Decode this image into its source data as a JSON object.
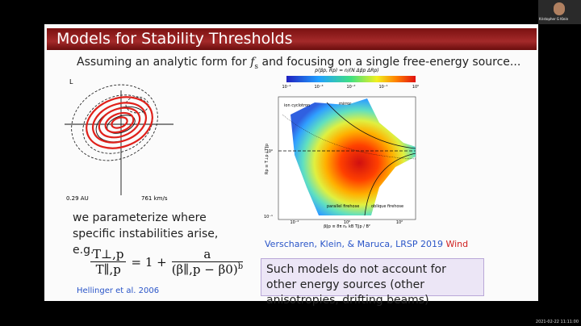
{
  "video_tile": {
    "name": "Kristopher G Klein"
  },
  "slide": {
    "title": "Models for Stability Thresholds",
    "intro_before": "Assuming an analytic form for",
    "intro_math": "f",
    "intro_math_sub": "s",
    "intro_after": "and focusing on a single free-energy source...",
    "left_figure": {
      "corner": "L",
      "distance": "0.29 AU",
      "speed": "761 km/s"
    },
    "parameterize": "we parameterize where specific instabilities arise, e.g.",
    "equation": {
      "lhs_num": "T⊥,p",
      "lhs_den": "T∥,p",
      "middle": "= 1 +",
      "rhs_num": "a",
      "rhs_den": "(β∥,p − β0)",
      "rhs_exp": "b"
    },
    "hellinger": "Hellinger et al. 2006",
    "right_figure": {
      "colorbar_label": "p(βp, Rp) = n/(N Δβp ΔRp)",
      "colorbar_ticks": [
        "10⁻⁴",
        "10⁻³",
        "10⁻²",
        "10⁻¹",
        "10⁰"
      ],
      "y_label": "Rp ≡ T⊥p / T∥p",
      "x_label": "β∥p ≡ 8π nₚ kB T∥p / B²",
      "y_ticks": [
        "10⁰",
        "10⁻¹"
      ],
      "x_ticks": [
        "10⁻²",
        "10⁰",
        "10²"
      ],
      "annotations": [
        "ion cyclotron",
        "mirror",
        "parallel firehose",
        "oblique firehose"
      ]
    },
    "citation": "Verscharen, Klein, & Maruca, LRSP 2019",
    "citation_data": "Wind",
    "note": "Such models do not account for other energy sources (other anisotropies, drifting beams)"
  },
  "timestamp": "2021-02-22 11:11:00"
}
